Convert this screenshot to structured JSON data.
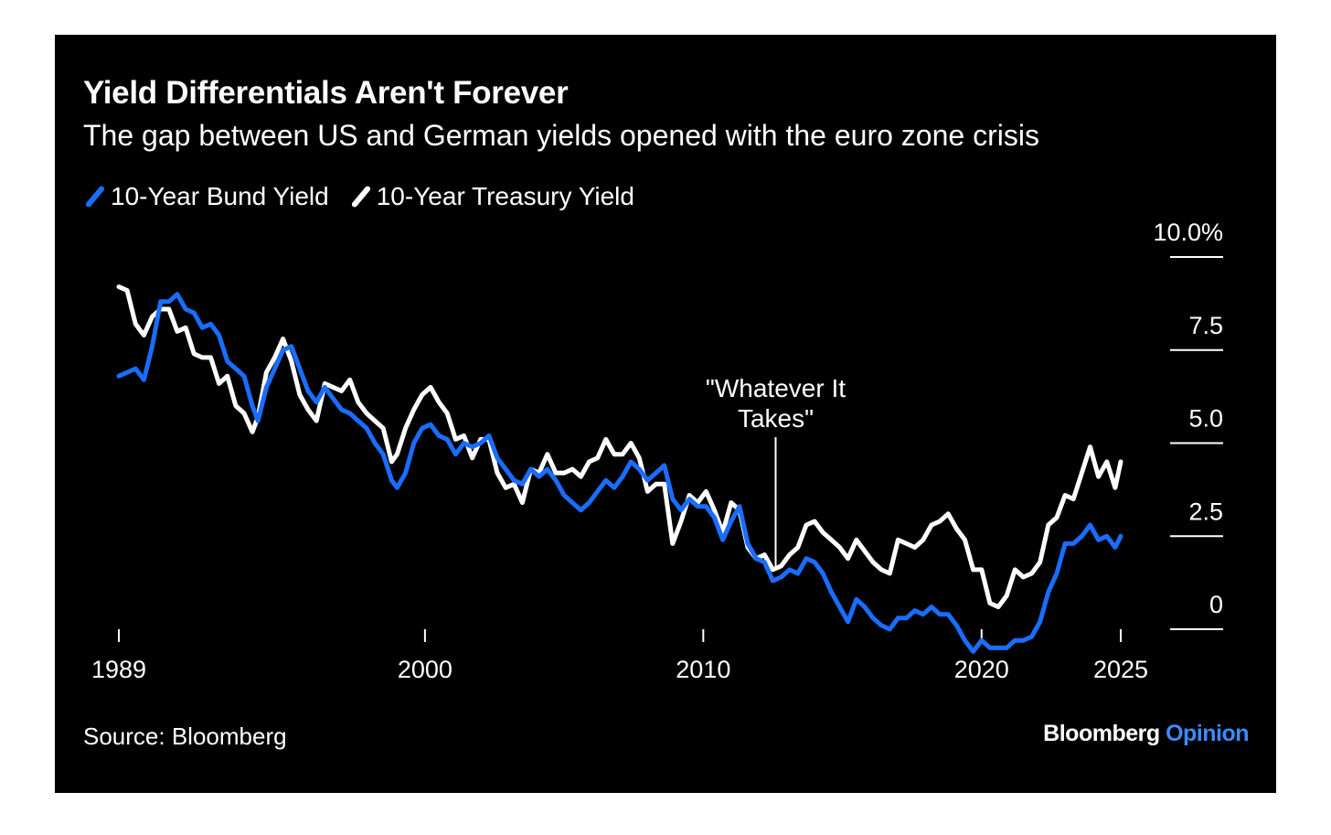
{
  "title": "Yield Differentials Aren't Forever",
  "subtitle": "The gap between US and German yields opened with the euro zone crisis",
  "source": "Source: Bloomberg",
  "brand": {
    "name": "Bloomberg",
    "suffix": "Opinion"
  },
  "colors": {
    "background": "#000000",
    "bund": "#1a6dff",
    "treasury": "#ffffff",
    "brand_accent": "#3b8cff"
  },
  "chart_data": {
    "type": "line",
    "legend_position": "top-left",
    "grid": false,
    "xlim": [
      1989.0,
      2025.0
    ],
    "ylim": [
      -0.7,
      10.0
    ],
    "x_ticks": [
      {
        "value": 1989,
        "label": "1989"
      },
      {
        "value": 2000,
        "label": "2000"
      },
      {
        "value": 2010,
        "label": "2010"
      },
      {
        "value": 2020,
        "label": "2020"
      },
      {
        "value": 2025,
        "label": "2025"
      }
    ],
    "y_ticks": [
      {
        "value": 10,
        "label": "10.0%"
      },
      {
        "value": 7.5,
        "label": "7.5"
      },
      {
        "value": 5,
        "label": "5.0"
      },
      {
        "value": 2.5,
        "label": "2.5"
      },
      {
        "value": 0,
        "label": "0"
      }
    ],
    "annotation": {
      "x": 2012.6,
      "y": 1.6,
      "lines": [
        "\"Whatever It",
        "Takes\""
      ]
    },
    "series": [
      {
        "name": "10-Year Bund Yield",
        "color": "#1a6dff",
        "points": [
          [
            1989.0,
            6.8
          ],
          [
            1989.3,
            6.9
          ],
          [
            1989.6,
            7.0
          ],
          [
            1989.9,
            6.7
          ],
          [
            1990.2,
            7.6
          ],
          [
            1990.5,
            8.8
          ],
          [
            1990.8,
            8.8
          ],
          [
            1991.1,
            9.0
          ],
          [
            1991.4,
            8.6
          ],
          [
            1991.7,
            8.5
          ],
          [
            1992.0,
            8.1
          ],
          [
            1992.3,
            8.2
          ],
          [
            1992.6,
            7.9
          ],
          [
            1992.9,
            7.2
          ],
          [
            1993.2,
            7.0
          ],
          [
            1993.5,
            6.8
          ],
          [
            1993.8,
            6.0
          ],
          [
            1994.0,
            5.6
          ],
          [
            1994.3,
            6.5
          ],
          [
            1994.6,
            7.0
          ],
          [
            1994.9,
            7.5
          ],
          [
            1995.2,
            7.6
          ],
          [
            1995.5,
            7.0
          ],
          [
            1995.8,
            6.4
          ],
          [
            1996.1,
            6.1
          ],
          [
            1996.4,
            6.5
          ],
          [
            1996.7,
            6.2
          ],
          [
            1997.0,
            5.9
          ],
          [
            1997.3,
            5.8
          ],
          [
            1997.6,
            5.6
          ],
          [
            1997.9,
            5.4
          ],
          [
            1998.2,
            5.0
          ],
          [
            1998.5,
            4.7
          ],
          [
            1998.8,
            4.0
          ],
          [
            1999.0,
            3.8
          ],
          [
            1999.3,
            4.2
          ],
          [
            1999.6,
            5.0
          ],
          [
            1999.9,
            5.4
          ],
          [
            2000.2,
            5.5
          ],
          [
            2000.5,
            5.2
          ],
          [
            2000.8,
            5.1
          ],
          [
            2001.1,
            4.7
          ],
          [
            2001.4,
            5.0
          ],
          [
            2001.7,
            4.9
          ],
          [
            2002.0,
            5.0
          ],
          [
            2002.3,
            5.2
          ],
          [
            2002.6,
            4.6
          ],
          [
            2002.9,
            4.3
          ],
          [
            2003.2,
            4.0
          ],
          [
            2003.5,
            3.9
          ],
          [
            2003.8,
            4.3
          ],
          [
            2004.1,
            4.1
          ],
          [
            2004.4,
            4.3
          ],
          [
            2004.7,
            4.0
          ],
          [
            2005.0,
            3.6
          ],
          [
            2005.3,
            3.4
          ],
          [
            2005.6,
            3.2
          ],
          [
            2005.9,
            3.4
          ],
          [
            2006.2,
            3.7
          ],
          [
            2006.5,
            4.0
          ],
          [
            2006.8,
            3.8
          ],
          [
            2007.1,
            4.1
          ],
          [
            2007.4,
            4.5
          ],
          [
            2007.7,
            4.3
          ],
          [
            2008.0,
            4.0
          ],
          [
            2008.3,
            4.2
          ],
          [
            2008.6,
            4.4
          ],
          [
            2008.9,
            3.5
          ],
          [
            2009.2,
            3.2
          ],
          [
            2009.5,
            3.5
          ],
          [
            2009.8,
            3.3
          ],
          [
            2010.1,
            3.3
          ],
          [
            2010.4,
            3.0
          ],
          [
            2010.7,
            2.4
          ],
          [
            2011.0,
            2.9
          ],
          [
            2011.3,
            3.3
          ],
          [
            2011.6,
            2.3
          ],
          [
            2011.9,
            1.9
          ],
          [
            2012.2,
            1.8
          ],
          [
            2012.5,
            1.3
          ],
          [
            2012.8,
            1.4
          ],
          [
            2013.1,
            1.6
          ],
          [
            2013.4,
            1.5
          ],
          [
            2013.7,
            1.9
          ],
          [
            2014.0,
            1.8
          ],
          [
            2014.3,
            1.5
          ],
          [
            2014.6,
            1.0
          ],
          [
            2014.9,
            0.6
          ],
          [
            2015.2,
            0.2
          ],
          [
            2015.5,
            0.8
          ],
          [
            2015.8,
            0.6
          ],
          [
            2016.1,
            0.3
          ],
          [
            2016.4,
            0.1
          ],
          [
            2016.7,
            0.0
          ],
          [
            2017.0,
            0.3
          ],
          [
            2017.3,
            0.3
          ],
          [
            2017.6,
            0.5
          ],
          [
            2017.9,
            0.4
          ],
          [
            2018.2,
            0.6
          ],
          [
            2018.5,
            0.4
          ],
          [
            2018.8,
            0.4
          ],
          [
            2019.1,
            0.1
          ],
          [
            2019.4,
            -0.3
          ],
          [
            2019.7,
            -0.6
          ],
          [
            2020.0,
            -0.3
          ],
          [
            2020.3,
            -0.5
          ],
          [
            2020.6,
            -0.5
          ],
          [
            2020.9,
            -0.5
          ],
          [
            2021.2,
            -0.3
          ],
          [
            2021.5,
            -0.3
          ],
          [
            2021.8,
            -0.2
          ],
          [
            2022.1,
            0.2
          ],
          [
            2022.4,
            1.0
          ],
          [
            2022.7,
            1.5
          ],
          [
            2023.0,
            2.3
          ],
          [
            2023.3,
            2.3
          ],
          [
            2023.6,
            2.5
          ],
          [
            2023.9,
            2.8
          ],
          [
            2024.2,
            2.4
          ],
          [
            2024.5,
            2.5
          ],
          [
            2024.8,
            2.2
          ],
          [
            2025.0,
            2.5
          ]
        ]
      },
      {
        "name": "10-Year Treasury Yield",
        "color": "#ffffff",
        "points": [
          [
            1989.0,
            9.2
          ],
          [
            1989.3,
            9.1
          ],
          [
            1989.6,
            8.2
          ],
          [
            1989.9,
            7.9
          ],
          [
            1990.2,
            8.4
          ],
          [
            1990.5,
            8.6
          ],
          [
            1990.8,
            8.6
          ],
          [
            1991.1,
            8.0
          ],
          [
            1991.4,
            8.1
          ],
          [
            1991.7,
            7.4
          ],
          [
            1992.0,
            7.3
          ],
          [
            1992.3,
            7.3
          ],
          [
            1992.6,
            6.6
          ],
          [
            1992.9,
            6.8
          ],
          [
            1993.2,
            6.0
          ],
          [
            1993.5,
            5.8
          ],
          [
            1993.8,
            5.3
          ],
          [
            1994.0,
            5.7
          ],
          [
            1994.3,
            6.9
          ],
          [
            1994.6,
            7.3
          ],
          [
            1994.9,
            7.8
          ],
          [
            1995.2,
            7.2
          ],
          [
            1995.5,
            6.3
          ],
          [
            1995.8,
            5.9
          ],
          [
            1996.1,
            5.6
          ],
          [
            1996.4,
            6.6
          ],
          [
            1996.7,
            6.5
          ],
          [
            1997.0,
            6.4
          ],
          [
            1997.3,
            6.7
          ],
          [
            1997.6,
            6.1
          ],
          [
            1997.9,
            5.8
          ],
          [
            1998.2,
            5.6
          ],
          [
            1998.5,
            5.4
          ],
          [
            1998.8,
            4.5
          ],
          [
            1999.0,
            4.7
          ],
          [
            1999.3,
            5.4
          ],
          [
            1999.6,
            5.9
          ],
          [
            1999.9,
            6.3
          ],
          [
            2000.2,
            6.5
          ],
          [
            2000.5,
            6.1
          ],
          [
            2000.8,
            5.8
          ],
          [
            2001.1,
            5.1
          ],
          [
            2001.4,
            5.2
          ],
          [
            2001.7,
            4.6
          ],
          [
            2002.0,
            5.1
          ],
          [
            2002.3,
            5.1
          ],
          [
            2002.6,
            4.2
          ],
          [
            2002.9,
            3.8
          ],
          [
            2003.2,
            3.9
          ],
          [
            2003.5,
            3.4
          ],
          [
            2003.8,
            4.3
          ],
          [
            2004.1,
            4.2
          ],
          [
            2004.4,
            4.7
          ],
          [
            2004.7,
            4.2
          ],
          [
            2005.0,
            4.2
          ],
          [
            2005.3,
            4.3
          ],
          [
            2005.6,
            4.1
          ],
          [
            2005.9,
            4.5
          ],
          [
            2006.2,
            4.6
          ],
          [
            2006.5,
            5.1
          ],
          [
            2006.8,
            4.7
          ],
          [
            2007.1,
            4.7
          ],
          [
            2007.4,
            5.0
          ],
          [
            2007.7,
            4.6
          ],
          [
            2008.0,
            3.7
          ],
          [
            2008.3,
            3.9
          ],
          [
            2008.6,
            3.9
          ],
          [
            2008.9,
            2.3
          ],
          [
            2009.2,
            2.9
          ],
          [
            2009.5,
            3.6
          ],
          [
            2009.8,
            3.4
          ],
          [
            2010.1,
            3.7
          ],
          [
            2010.4,
            3.2
          ],
          [
            2010.7,
            2.6
          ],
          [
            2011.0,
            3.4
          ],
          [
            2011.3,
            3.2
          ],
          [
            2011.6,
            2.2
          ],
          [
            2011.9,
            1.9
          ],
          [
            2012.2,
            2.0
          ],
          [
            2012.5,
            1.6
          ],
          [
            2012.8,
            1.7
          ],
          [
            2013.1,
            2.0
          ],
          [
            2013.4,
            2.2
          ],
          [
            2013.7,
            2.8
          ],
          [
            2014.0,
            2.9
          ],
          [
            2014.3,
            2.6
          ],
          [
            2014.6,
            2.4
          ],
          [
            2014.9,
            2.2
          ],
          [
            2015.2,
            1.9
          ],
          [
            2015.5,
            2.4
          ],
          [
            2015.8,
            2.1
          ],
          [
            2016.1,
            1.8
          ],
          [
            2016.4,
            1.6
          ],
          [
            2016.7,
            1.5
          ],
          [
            2017.0,
            2.4
          ],
          [
            2017.3,
            2.3
          ],
          [
            2017.6,
            2.2
          ],
          [
            2017.9,
            2.4
          ],
          [
            2018.2,
            2.8
          ],
          [
            2018.5,
            2.9
          ],
          [
            2018.8,
            3.1
          ],
          [
            2019.1,
            2.7
          ],
          [
            2019.4,
            2.4
          ],
          [
            2019.7,
            1.6
          ],
          [
            2020.0,
            1.6
          ],
          [
            2020.3,
            0.7
          ],
          [
            2020.6,
            0.6
          ],
          [
            2020.9,
            0.9
          ],
          [
            2021.2,
            1.6
          ],
          [
            2021.5,
            1.4
          ],
          [
            2021.8,
            1.5
          ],
          [
            2022.1,
            1.8
          ],
          [
            2022.4,
            2.8
          ],
          [
            2022.7,
            3.0
          ],
          [
            2023.0,
            3.6
          ],
          [
            2023.3,
            3.5
          ],
          [
            2023.6,
            4.2
          ],
          [
            2023.9,
            4.9
          ],
          [
            2024.2,
            4.1
          ],
          [
            2024.5,
            4.5
          ],
          [
            2024.8,
            3.8
          ],
          [
            2025.0,
            4.5
          ]
        ]
      }
    ]
  }
}
